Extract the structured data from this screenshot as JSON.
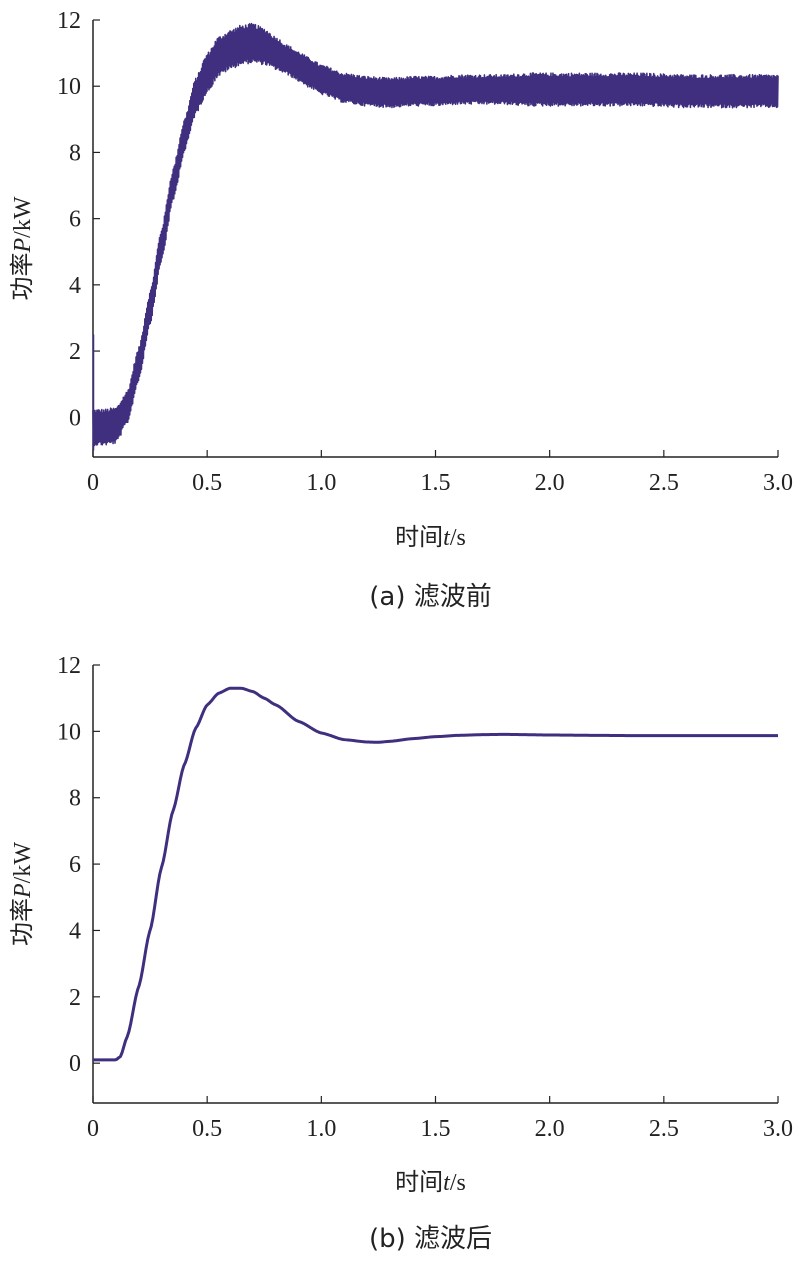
{
  "accent_color": "#3f2f7e",
  "chart_data": [
    {
      "type": "line",
      "caption": "(a) 滤波前",
      "xlabel_main": "时间",
      "xlabel_var": "t",
      "xlabel_unit": "/s",
      "ylabel_main": "功率",
      "ylabel_var": "P",
      "ylabel_unit": "/kW",
      "xlim": [
        0,
        3.0
      ],
      "ylim": [
        -1.2,
        12
      ],
      "xticks": [
        "0",
        "0.5",
        "1.0",
        "1.5",
        "2.0",
        "2.5",
        "3.0"
      ],
      "xtick_values": [
        0,
        0.5,
        1.0,
        1.5,
        2.0,
        2.5,
        3.0
      ],
      "yticks": [
        "0",
        "2",
        "4",
        "6",
        "8",
        "10",
        "12"
      ],
      "ytick_values": [
        0,
        2,
        4,
        6,
        8,
        10,
        12
      ],
      "grid": false,
      "noisy": true,
      "series": [
        {
          "color": "#3f2f7e",
          "x": [
            0,
            0.05,
            0.1,
            0.15,
            0.2,
            0.25,
            0.3,
            0.35,
            0.4,
            0.45,
            0.5,
            0.55,
            0.6,
            0.65,
            0.7,
            0.75,
            0.8,
            0.85,
            0.9,
            0.95,
            1.0,
            1.1,
            1.2,
            1.3,
            1.4,
            1.5,
            1.6,
            1.7,
            1.8,
            1.9,
            2.0,
            2.2,
            2.4,
            2.6,
            2.8,
            3.0
          ],
          "y": [
            -0.3,
            -0.3,
            -0.25,
            0.3,
            1.6,
            3.3,
            5.2,
            7.0,
            8.5,
            9.7,
            10.4,
            10.9,
            11.1,
            11.25,
            11.3,
            11.2,
            11.0,
            10.8,
            10.6,
            10.4,
            10.2,
            9.95,
            9.85,
            9.8,
            9.85,
            9.85,
            9.9,
            9.9,
            9.9,
            9.9,
            9.9,
            9.9,
            9.9,
            9.85,
            9.85,
            9.85
          ],
          "band": [
            0.55,
            0.55,
            0.55,
            0.5,
            0.5,
            0.5,
            0.5,
            0.5,
            0.5,
            0.55,
            0.6,
            0.6,
            0.6,
            0.6,
            0.6,
            0.55,
            0.5,
            0.45,
            0.45,
            0.45,
            0.45,
            0.45,
            0.45,
            0.45,
            0.45,
            0.45,
            0.45,
            0.45,
            0.45,
            0.5,
            0.5,
            0.5,
            0.5,
            0.5,
            0.5,
            0.5
          ]
        }
      ]
    },
    {
      "type": "line",
      "caption": "(b) 滤波后",
      "xlabel_main": "时间",
      "xlabel_var": "t",
      "xlabel_unit": "/s",
      "ylabel_main": "功率",
      "ylabel_var": "P",
      "ylabel_unit": "/kW",
      "xlim": [
        0,
        3.0
      ],
      "ylim": [
        -1.2,
        12
      ],
      "xticks": [
        "0",
        "0.5",
        "1.0",
        "1.5",
        "2.0",
        "2.5",
        "3.0"
      ],
      "xtick_values": [
        0,
        0.5,
        1.0,
        1.5,
        2.0,
        2.5,
        3.0
      ],
      "yticks": [
        "0",
        "2",
        "4",
        "6",
        "8",
        "10",
        "12"
      ],
      "ytick_values": [
        0,
        2,
        4,
        6,
        8,
        10,
        12
      ],
      "grid": false,
      "noisy": false,
      "series": [
        {
          "color": "#3f2f7e",
          "x": [
            0,
            0.05,
            0.1,
            0.12,
            0.15,
            0.2,
            0.25,
            0.3,
            0.35,
            0.4,
            0.45,
            0.5,
            0.55,
            0.6,
            0.65,
            0.7,
            0.75,
            0.8,
            0.9,
            1.0,
            1.1,
            1.2,
            1.25,
            1.3,
            1.4,
            1.5,
            1.6,
            1.7,
            1.8,
            1.9,
            2.0,
            2.2,
            2.4,
            2.6,
            2.8,
            3.0
          ],
          "y": [
            0.1,
            0.1,
            0.1,
            0.2,
            0.8,
            2.3,
            4.0,
            5.9,
            7.6,
            9.0,
            10.1,
            10.8,
            11.15,
            11.3,
            11.3,
            11.2,
            11.0,
            10.8,
            10.3,
            9.95,
            9.75,
            9.68,
            9.67,
            9.7,
            9.78,
            9.84,
            9.88,
            9.9,
            9.91,
            9.9,
            9.89,
            9.88,
            9.87,
            9.87,
            9.87,
            9.87
          ]
        }
      ]
    }
  ]
}
